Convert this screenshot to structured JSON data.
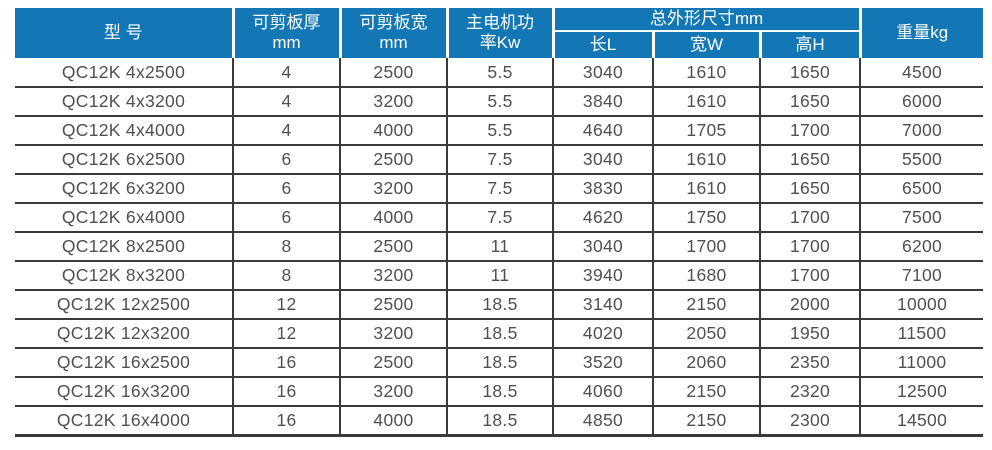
{
  "colors": {
    "header_bg": "#1377b5",
    "header_text": "#ffffff",
    "body_text": "#505050",
    "grid_line": "#3a3a3a"
  },
  "table": {
    "headers": {
      "model": "型 号",
      "thickness": "可剪板厚\nmm",
      "plate_width": "可剪板宽\nmm",
      "power": "主电机功\n率Kw",
      "dims_group": "总外形尺寸mm",
      "dim_length": "长L",
      "dim_width": "宽W",
      "dim_height": "高H",
      "weight": "重量kg"
    },
    "rows": [
      [
        "QC12K 4x2500",
        "4",
        "2500",
        "5.5",
        "3040",
        "1610",
        "1650",
        "4500"
      ],
      [
        "QC12K 4x3200",
        "4",
        "3200",
        "5.5",
        "3840",
        "1610",
        "1650",
        "6000"
      ],
      [
        "QC12K 4x4000",
        "4",
        "4000",
        "5.5",
        "4640",
        "1705",
        "1700",
        "7000"
      ],
      [
        "QC12K 6x2500",
        "6",
        "2500",
        "7.5",
        "3040",
        "1610",
        "1650",
        "5500"
      ],
      [
        "QC12K 6x3200",
        "6",
        "3200",
        "7.5",
        "3830",
        "1610",
        "1650",
        "6500"
      ],
      [
        "QC12K 6x4000",
        "6",
        "4000",
        "7.5",
        "4620",
        "1750",
        "1700",
        "7500"
      ],
      [
        "QC12K 8x2500",
        "8",
        "2500",
        "11",
        "3040",
        "1700",
        "1700",
        "6200"
      ],
      [
        "QC12K 8x3200",
        "8",
        "3200",
        "11",
        "3940",
        "1680",
        "1700",
        "7100"
      ],
      [
        "QC12K 12x2500",
        "12",
        "2500",
        "18.5",
        "3140",
        "2150",
        "2000",
        "10000"
      ],
      [
        "QC12K 12x3200",
        "12",
        "3200",
        "18.5",
        "4020",
        "2050",
        "1950",
        "11500"
      ],
      [
        "QC12K 16x2500",
        "16",
        "2500",
        "18.5",
        "3520",
        "2060",
        "2350",
        "11000"
      ],
      [
        "QC12K 16x3200",
        "16",
        "3200",
        "18.5",
        "4060",
        "2150",
        "2320",
        "12500"
      ],
      [
        "QC12K 16x4000",
        "16",
        "4000",
        "18.5",
        "4850",
        "2150",
        "2300",
        "14500"
      ]
    ]
  }
}
